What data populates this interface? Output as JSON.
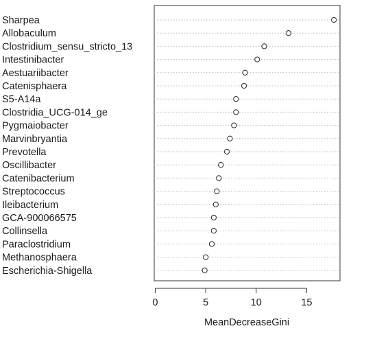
{
  "chart_data": {
    "type": "scatter",
    "style": "dotchart",
    "categories": [
      "Sharpea",
      "Allobaculum",
      "Clostridium_sensu_stricto_13",
      "Intestinibacter",
      "Aestuariibacter",
      "Catenisphaera",
      "S5-A14a",
      "Clostridia_UCG-014_ge",
      "Pygmaiobacter",
      "Marvinbryantia",
      "Prevotella",
      "Oscillibacter",
      "Catenibacterium",
      "Streptococcus",
      "Ileibacterium",
      "GCA-900066575",
      "Collinsella",
      "Paraclostridium",
      "Methanosphaera",
      "Escherichia-Shigella"
    ],
    "values": [
      17.7,
      13.2,
      10.8,
      10.1,
      8.9,
      8.8,
      8.0,
      8.0,
      7.8,
      7.4,
      7.1,
      6.5,
      6.3,
      6.1,
      6.0,
      5.8,
      5.8,
      5.6,
      5.0,
      4.9
    ],
    "xlabel": "MeanDecreaseGini",
    "ylabel": "",
    "xlim": [
      -0.1,
      18.3
    ],
    "xticks": [
      "0",
      "5",
      "10",
      "15"
    ],
    "grid": "dotted horizontal lines",
    "point_style": "open circle",
    "colors": {
      "point": "#333333",
      "grid": "#b5b5b5",
      "frame": "#333333"
    }
  }
}
